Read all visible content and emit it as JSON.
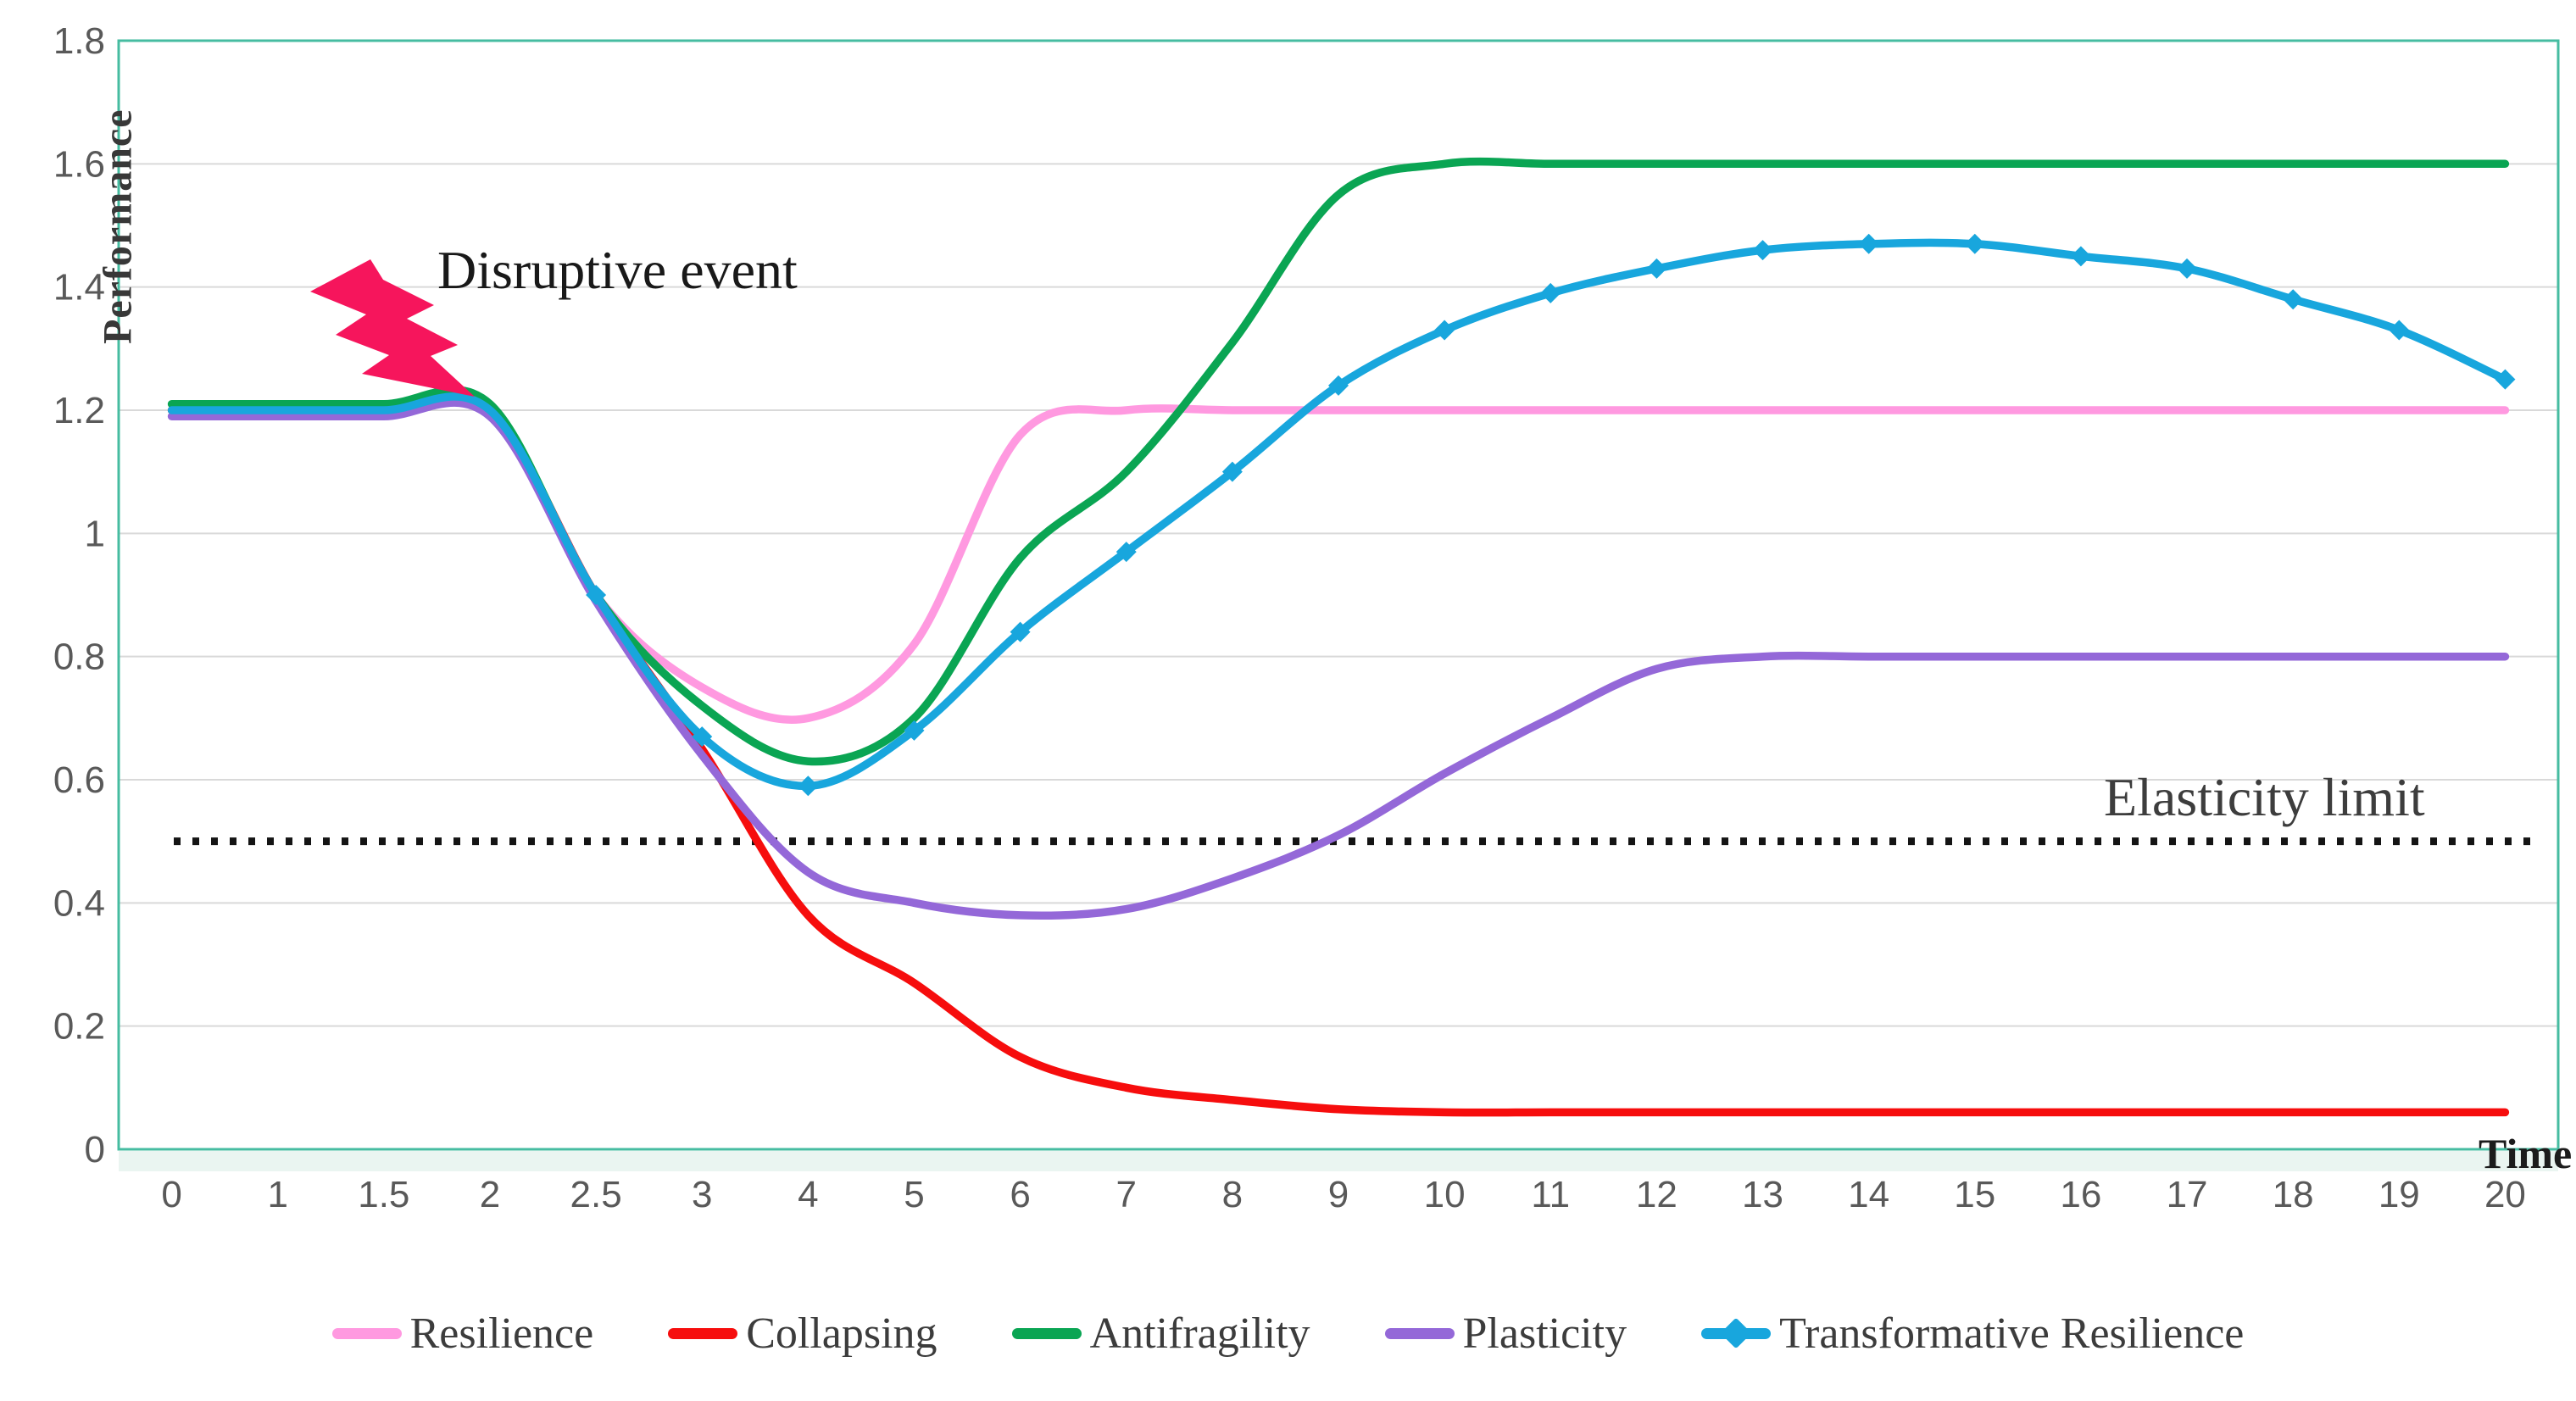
{
  "figure": {
    "colors": {
      "frame": "#46bca1",
      "gridline": "#d9d9d9",
      "limit_line": "#141414",
      "lightning": "#f6155c",
      "tick_text": "#595959",
      "under_axis_band": "#eaf5f1"
    }
  },
  "chart_data": {
    "type": "line",
    "title": "",
    "xlabel": "Time",
    "ylabel": "Performance",
    "x_categories": [
      "0",
      "1",
      "1.5",
      "2",
      "2.5",
      "3",
      "4",
      "5",
      "6",
      "7",
      "8",
      "9",
      "10",
      "11",
      "12",
      "13",
      "14",
      "15",
      "16",
      "17",
      "18",
      "19",
      "20"
    ],
    "y_ticks": [
      "1.8",
      "1.6",
      "1.4",
      "1.2",
      "1",
      "0.8",
      "0.6",
      "0.4",
      "0.2",
      "0"
    ],
    "ylim": [
      0,
      1.8
    ],
    "grid": "horizontal",
    "legend_position": "bottom",
    "annotations": {
      "disruptive_event": "Disruptive event",
      "elasticity_limit": "Elasticity limit"
    },
    "limit": {
      "label": "Elasticity limit",
      "value": 0.5
    },
    "series": [
      {
        "name": "Resilience",
        "color": "#ff99e0",
        "values": [
          1.2,
          1.2,
          1.2,
          1.2,
          0.9,
          0.75,
          0.7,
          0.82,
          1.16,
          1.2,
          1.2,
          1.2,
          1.2,
          1.2,
          1.2,
          1.2,
          1.2,
          1.2,
          1.2,
          1.2,
          1.2,
          1.2,
          1.2
        ]
      },
      {
        "name": "Collapsing",
        "color": "#f60d0d",
        "values": [
          1.2,
          1.2,
          1.2,
          1.2,
          0.9,
          0.65,
          0.38,
          0.27,
          0.15,
          0.1,
          0.08,
          0.065,
          0.06,
          0.06,
          0.06,
          0.06,
          0.06,
          0.06,
          0.06,
          0.06,
          0.06,
          0.06,
          0.06
        ]
      },
      {
        "name": "Antifragility",
        "color": "#0aa553",
        "values": [
          1.21,
          1.21,
          1.21,
          1.21,
          0.9,
          0.72,
          0.63,
          0.7,
          0.96,
          1.1,
          1.31,
          1.55,
          1.6,
          1.6,
          1.6,
          1.6,
          1.6,
          1.6,
          1.6,
          1.6,
          1.6,
          1.6,
          1.6
        ]
      },
      {
        "name": "Plasticity",
        "color": "#9468d8",
        "values": [
          1.19,
          1.19,
          1.19,
          1.19,
          0.89,
          0.64,
          0.45,
          0.4,
          0.38,
          0.39,
          0.44,
          0.51,
          0.61,
          0.7,
          0.78,
          0.8,
          0.8,
          0.8,
          0.8,
          0.8,
          0.8,
          0.8,
          0.8
        ]
      },
      {
        "name": "Transformative Resilience",
        "color": "#18a6dd",
        "marker": "diamond",
        "marker_from_category": "2.5",
        "values": [
          1.2,
          1.2,
          1.2,
          1.2,
          0.9,
          0.67,
          0.59,
          0.68,
          0.84,
          0.97,
          1.1,
          1.24,
          1.33,
          1.39,
          1.43,
          1.46,
          1.47,
          1.47,
          1.45,
          1.43,
          1.38,
          1.33,
          1.25
        ]
      }
    ]
  }
}
